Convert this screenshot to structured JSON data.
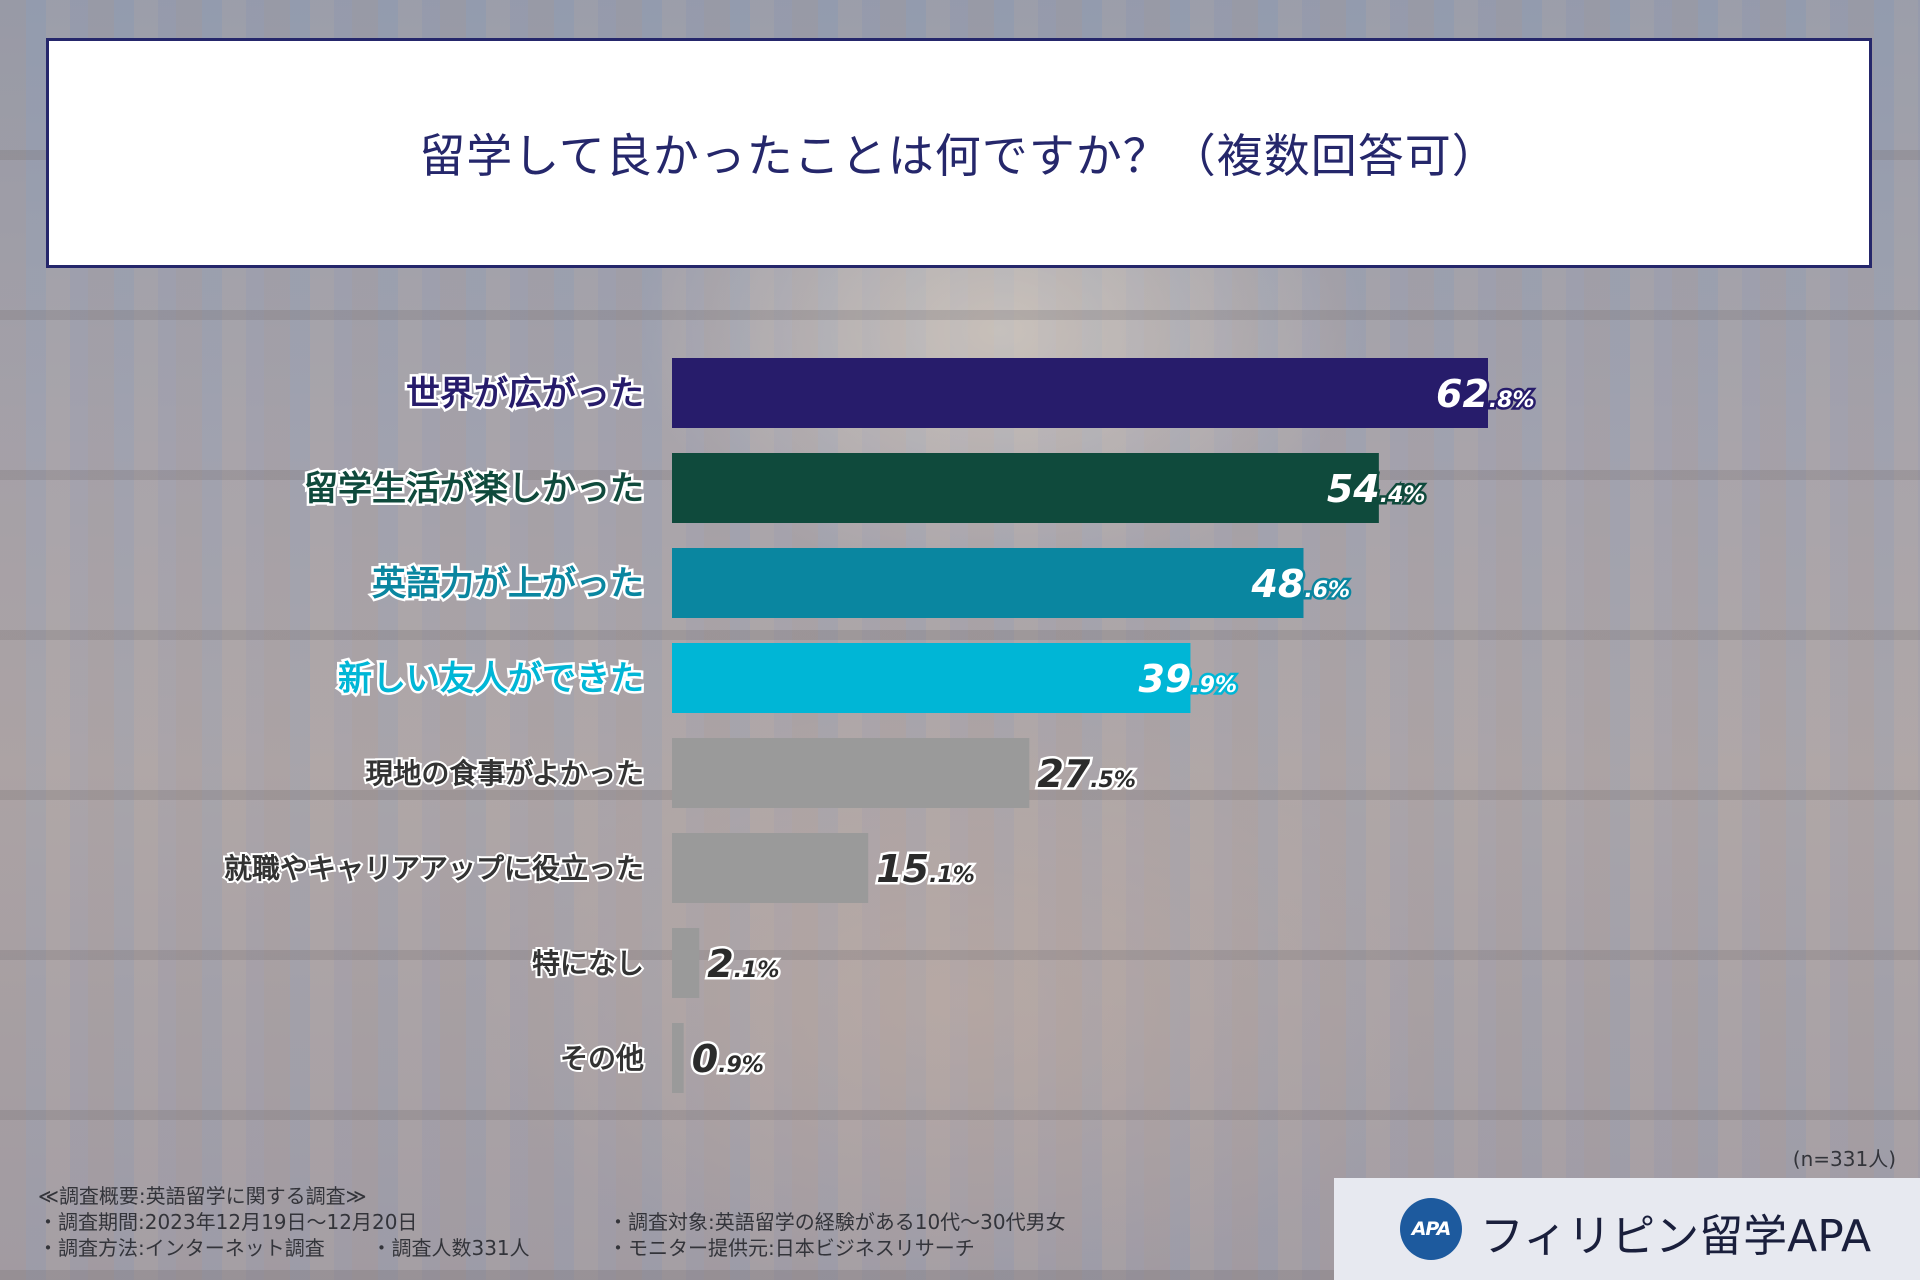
{
  "title": "留学して良かったことは何ですか？（複数回答可）",
  "chart_data": {
    "type": "bar",
    "orientation": "horizontal",
    "title": "留学して良かったことは何ですか？（複数回答可）",
    "categories": [
      "世界が広がった",
      "留学生活が楽しかった",
      "英語力が上がった",
      "新しい友人ができた",
      "現地の食事がよかった",
      "就職やキャリアアップに役立った",
      "特になし",
      "その他"
    ],
    "values": [
      62.8,
      54.4,
      48.6,
      39.9,
      27.5,
      15.1,
      2.1,
      0.9
    ],
    "value_labels": [
      {
        "int": "62",
        "dec": ".8%"
      },
      {
        "int": "54",
        "dec": ".4%"
      },
      {
        "int": "48",
        "dec": ".6%"
      },
      {
        "int": "39",
        "dec": ".9%"
      },
      {
        "int": "27",
        "dec": ".5%"
      },
      {
        "int": "15",
        "dec": ".1%"
      },
      {
        "int": "2",
        "dec": ".1%"
      },
      {
        "int": "0",
        "dec": ".9%"
      }
    ],
    "colors": [
      "#271c6b",
      "#0f4a3c",
      "#0a86a0",
      "#00b6d6",
      "#9a9a9a",
      "#9a9a9a",
      "#9a9a9a",
      "#9a9a9a"
    ],
    "label_colors": [
      "#271c6b",
      "#0f4a3c",
      "#0a86a0",
      "#00b6d6",
      "#333333",
      "#333333",
      "#333333",
      "#333333"
    ],
    "xlim": [
      0,
      100
    ],
    "unit": "%",
    "grid": false,
    "legend": "none"
  },
  "sample_size": "(n=331人)",
  "footer": {
    "heading": "≪調査概要:英語留学に関する調査≫",
    "period": "・調査期間:2023年12月19日～12月20日",
    "method": "・調査方法:インターネット調査",
    "count": "・調査人数331人",
    "target": "・調査対象:英語留学の経験がある10代～30代男女",
    "monitor": "・モニター提供元:日本ビジネスリサーチ"
  },
  "logo": {
    "mark": "APA",
    "text": "フィリピン留学APA",
    "color": "#1d5a9e"
  }
}
